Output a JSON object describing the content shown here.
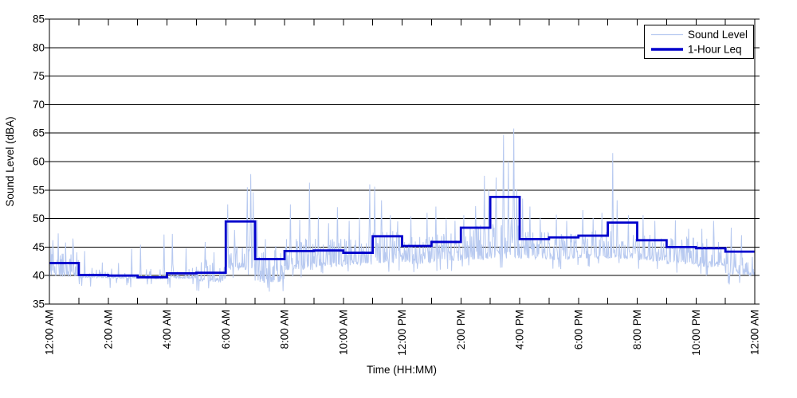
{
  "figure": {
    "background_color": "#ffffff",
    "frame_color": "#000000",
    "grid_color": "#000000"
  },
  "chart_data": {
    "type": "line",
    "title": "",
    "xlabel": "Time (HH:MM)",
    "ylabel": "Sound Level (dBA)",
    "ylim": [
      35,
      85
    ],
    "y_ticks": [
      35,
      40,
      45,
      50,
      55,
      60,
      65,
      70,
      75,
      80,
      85
    ],
    "x_hours": 24,
    "x_minor_tick_every_hours": 1,
    "x_major_tick_every_hours": 2,
    "x_tick_labels": [
      "12:00 AM",
      "2:00 AM",
      "4:00 AM",
      "6:00 AM",
      "8:00 AM",
      "10:00 AM",
      "12:00 PM",
      "2:00 PM",
      "4:00 PM",
      "6:00 PM",
      "8:00 PM",
      "10:00 PM",
      "12:00 AM"
    ],
    "grid": "horizontal-solid",
    "legend": {
      "position": "top-right",
      "entries": [
        {
          "label": "Sound Level",
          "color": "#b7c9f0",
          "line_width": 1
        },
        {
          "label": "1-Hour Leq",
          "color": "#0000cc",
          "line_width": 3
        }
      ]
    },
    "series": [
      {
        "name": "1-Hour Leq",
        "style": "step-hourly",
        "color": "#0000cc",
        "values_dba_by_hour": [
          42.2,
          40.1,
          40.0,
          39.7,
          40.4,
          40.5,
          49.5,
          42.9,
          44.3,
          44.4,
          44.0,
          46.9,
          45.2,
          45.9,
          48.4,
          53.8,
          46.4,
          46.7,
          47.0,
          49.3,
          46.2,
          45.0,
          44.8,
          44.2
        ]
      },
      {
        "name": "Sound Level",
        "style": "noisy-minute-trace",
        "color": "#b7c9f0",
        "hourly_envelope": [
          {
            "lo": 39.8,
            "hi": 45.0,
            "act": 0.75
          },
          {
            "lo": 39.6,
            "hi": 41.5,
            "act": 0.25
          },
          {
            "lo": 39.5,
            "hi": 41.5,
            "act": 0.25
          },
          {
            "lo": 39.4,
            "hi": 41.5,
            "act": 0.22
          },
          {
            "lo": 39.5,
            "hi": 42.0,
            "act": 0.3
          },
          {
            "lo": 38.9,
            "hi": 43.0,
            "act": 0.5
          },
          {
            "lo": 41.0,
            "hi": 45.5,
            "act": 0.8
          },
          {
            "lo": 38.8,
            "hi": 44.5,
            "act": 0.7
          },
          {
            "lo": 41.0,
            "hi": 46.5,
            "act": 0.8
          },
          {
            "lo": 41.5,
            "hi": 46.5,
            "act": 0.8
          },
          {
            "lo": 41.8,
            "hi": 47.0,
            "act": 0.8
          },
          {
            "lo": 42.2,
            "hi": 48.0,
            "act": 0.8
          },
          {
            "lo": 42.0,
            "hi": 47.0,
            "act": 0.8
          },
          {
            "lo": 42.5,
            "hi": 47.5,
            "act": 0.8
          },
          {
            "lo": 42.8,
            "hi": 49.0,
            "act": 0.8
          },
          {
            "lo": 43.0,
            "hi": 50.0,
            "act": 0.8
          },
          {
            "lo": 42.8,
            "hi": 48.0,
            "act": 0.8
          },
          {
            "lo": 42.8,
            "hi": 47.5,
            "act": 0.8
          },
          {
            "lo": 43.0,
            "hi": 48.0,
            "act": 0.8
          },
          {
            "lo": 43.0,
            "hi": 48.5,
            "act": 0.8
          },
          {
            "lo": 42.5,
            "hi": 47.5,
            "act": 0.8
          },
          {
            "lo": 42.0,
            "hi": 47.0,
            "act": 0.75
          },
          {
            "lo": 41.5,
            "hi": 46.5,
            "act": 0.75
          },
          {
            "lo": 40.0,
            "hi": 45.5,
            "act": 0.7
          }
        ],
        "notable_spikes": [
          [
            0.12,
            46.2
          ],
          [
            0.3,
            47.4
          ],
          [
            0.55,
            45.8
          ],
          [
            0.8,
            46.5
          ],
          [
            1.2,
            44.3
          ],
          [
            1.8,
            42.3
          ],
          [
            2.35,
            42.2
          ],
          [
            2.8,
            44.7
          ],
          [
            3.1,
            45.4
          ],
          [
            3.9,
            47.2
          ],
          [
            4.18,
            47.3
          ],
          [
            4.65,
            44.8
          ],
          [
            5.3,
            45.9
          ],
          [
            5.6,
            44.1
          ],
          [
            6.07,
            52.5
          ],
          [
            6.3,
            48.0
          ],
          [
            6.73,
            55.5
          ],
          [
            6.85,
            57.8
          ],
          [
            6.93,
            54.6
          ],
          [
            7.07,
            49.8
          ],
          [
            7.35,
            46.4
          ],
          [
            7.7,
            45.2
          ],
          [
            8.2,
            52.5
          ],
          [
            8.52,
            49.8
          ],
          [
            8.85,
            56.3
          ],
          [
            9.15,
            50.3
          ],
          [
            9.5,
            49.2
          ],
          [
            9.8,
            52.0
          ],
          [
            10.2,
            49.6
          ],
          [
            10.55,
            50.1
          ],
          [
            10.9,
            56.0
          ],
          [
            11.07,
            55.6
          ],
          [
            11.3,
            53.2
          ],
          [
            11.6,
            50.6
          ],
          [
            11.85,
            49.5
          ],
          [
            12.3,
            50.4
          ],
          [
            12.85,
            51.0
          ],
          [
            13.15,
            52.1
          ],
          [
            13.5,
            50.0
          ],
          [
            13.8,
            49.6
          ],
          [
            14.1,
            50.6
          ],
          [
            14.5,
            52.2
          ],
          [
            14.8,
            57.5
          ],
          [
            14.95,
            55.0
          ],
          [
            15.2,
            57.2
          ],
          [
            15.45,
            64.7
          ],
          [
            15.62,
            60.0
          ],
          [
            15.8,
            65.8
          ],
          [
            15.9,
            55.2
          ],
          [
            16.1,
            53.5
          ],
          [
            16.35,
            52.1
          ],
          [
            16.7,
            50.2
          ],
          [
            17.25,
            50.7
          ],
          [
            17.6,
            49.6
          ],
          [
            18.15,
            51.5
          ],
          [
            18.5,
            50.1
          ],
          [
            18.8,
            51.0
          ],
          [
            19.17,
            61.5
          ],
          [
            19.32,
            53.2
          ],
          [
            19.7,
            50.6
          ],
          [
            20.2,
            50.6
          ],
          [
            20.6,
            49.6
          ],
          [
            21.3,
            49.7
          ],
          [
            21.75,
            48.2
          ],
          [
            22.2,
            48.2
          ],
          [
            22.6,
            49.6
          ],
          [
            23.2,
            48.4
          ],
          [
            23.55,
            47.1
          ]
        ]
      }
    ]
  }
}
